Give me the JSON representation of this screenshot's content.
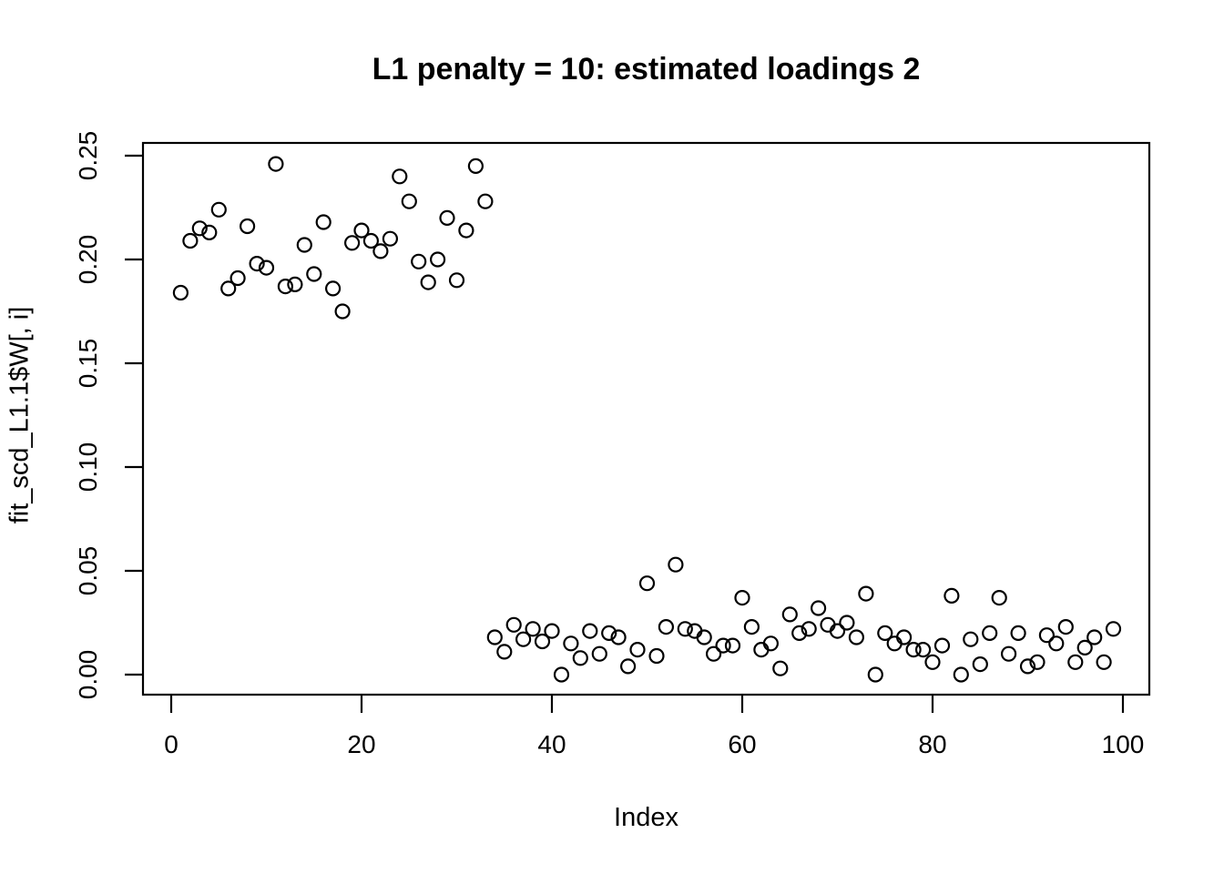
{
  "chart_data": {
    "type": "scatter",
    "title": "L1 penalty = 10: estimated loadings 2",
    "xlabel": "Index",
    "ylabel": "fit_scd_L1.1$W[, i]",
    "marker": "open-circle",
    "grid": false,
    "legend": null,
    "x_tick_values": [
      0,
      20,
      40,
      60,
      80,
      100
    ],
    "x_tick_labels": [
      "0",
      "20",
      "40",
      "60",
      "80",
      "100"
    ],
    "y_tick_values": [
      0.0,
      0.05,
      0.1,
      0.15,
      0.2,
      0.25
    ],
    "y_tick_labels": [
      "0.00",
      "0.05",
      "0.10",
      "0.15",
      "0.20",
      "0.25"
    ],
    "xlim": [
      -2.9,
      102.8
    ],
    "ylim": [
      -0.0097,
      0.2561
    ],
    "x": [
      1,
      2,
      3,
      4,
      5,
      6,
      7,
      8,
      9,
      10,
      11,
      12,
      13,
      14,
      15,
      16,
      17,
      18,
      19,
      20,
      21,
      22,
      23,
      24,
      25,
      26,
      27,
      28,
      29,
      30,
      31,
      32,
      33,
      34,
      35,
      36,
      37,
      38,
      39,
      40,
      41,
      42,
      43,
      44,
      45,
      46,
      47,
      48,
      49,
      50,
      51,
      52,
      53,
      54,
      55,
      56,
      57,
      58,
      59,
      60,
      61,
      62,
      63,
      64,
      65,
      66,
      67,
      68,
      69,
      70,
      71,
      72,
      73,
      74,
      75,
      76,
      77,
      78,
      79,
      80,
      81,
      82,
      83,
      84,
      85,
      86,
      87,
      88,
      89,
      90,
      91,
      92,
      93,
      94,
      95,
      96,
      97,
      98,
      99
    ],
    "y": [
      0.184,
      0.209,
      0.215,
      0.213,
      0.224,
      0.186,
      0.191,
      0.216,
      0.198,
      0.196,
      0.246,
      0.187,
      0.188,
      0.207,
      0.193,
      0.218,
      0.186,
      0.175,
      0.208,
      0.214,
      0.209,
      0.204,
      0.21,
      0.24,
      0.228,
      0.199,
      0.189,
      0.2,
      0.22,
      0.19,
      0.214,
      0.245,
      0.228,
      0.018,
      0.011,
      0.024,
      0.017,
      0.022,
      0.016,
      0.021,
      0.0,
      0.015,
      0.008,
      0.021,
      0.01,
      0.02,
      0.018,
      0.004,
      0.012,
      0.044,
      0.009,
      0.023,
      0.053,
      0.022,
      0.021,
      0.018,
      0.01,
      0.014,
      0.014,
      0.037,
      0.023,
      0.012,
      0.015,
      0.003,
      0.029,
      0.02,
      0.022,
      0.032,
      0.024,
      0.021,
      0.025,
      0.018,
      0.039,
      0.0,
      0.02,
      0.015,
      0.018,
      0.012,
      0.012,
      0.006,
      0.014,
      0.038,
      0.0,
      0.017,
      0.005,
      0.02,
      0.037,
      0.01,
      0.02,
      0.004,
      0.006,
      0.019,
      0.015,
      0.023,
      0.006,
      0.013,
      0.018,
      0.006,
      0.022
    ],
    "colors": {
      "ink": "#000000",
      "background": "#ffffff"
    }
  }
}
